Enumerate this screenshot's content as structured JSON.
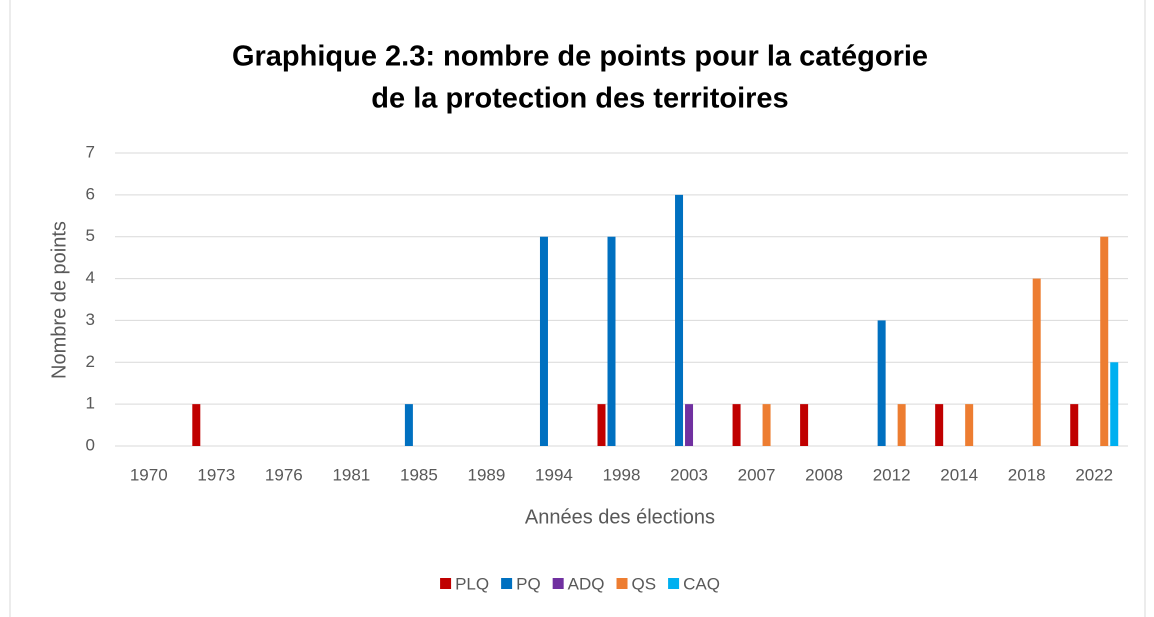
{
  "chart_data": {
    "type": "bar",
    "title": [
      "Graphique 2.3: nombre de points pour la catégorie",
      "de la protection des territoires"
    ],
    "x_label": "Années des élections",
    "y_label": "Nombre de points",
    "categories": [
      "1970",
      "1973",
      "1976",
      "1981",
      "1985",
      "1989",
      "1994",
      "1998",
      "2003",
      "2007",
      "2008",
      "2012",
      "2014",
      "2018",
      "2022"
    ],
    "series": [
      {
        "name": "PLQ",
        "color": "#c00000",
        "values": [
          0,
          1,
          0,
          0,
          0,
          0,
          0,
          1,
          0,
          1,
          1,
          0,
          1,
          0,
          1
        ]
      },
      {
        "name": "PQ",
        "color": "#0070c0",
        "values": [
          0,
          0,
          0,
          0,
          1,
          0,
          5,
          5,
          6,
          0,
          0,
          3,
          0,
          0,
          0
        ]
      },
      {
        "name": "ADQ",
        "color": "#7030a0",
        "values": [
          0,
          0,
          0,
          0,
          0,
          0,
          0,
          0,
          1,
          0,
          0,
          0,
          0,
          0,
          0
        ]
      },
      {
        "name": "QS",
        "color": "#ed7d31",
        "values": [
          0,
          0,
          0,
          0,
          0,
          0,
          0,
          0,
          0,
          1,
          0,
          1,
          1,
          4,
          5
        ]
      },
      {
        "name": "CAQ",
        "color": "#00b0f0",
        "values": [
          0,
          0,
          0,
          0,
          0,
          0,
          0,
          0,
          0,
          0,
          0,
          0,
          0,
          0,
          2
        ]
      }
    ],
    "ylim": [
      0,
      7
    ],
    "yticks": [
      0,
      1,
      2,
      3,
      4,
      5,
      6,
      7
    ],
    "grid": true,
    "legend": "bottom"
  }
}
